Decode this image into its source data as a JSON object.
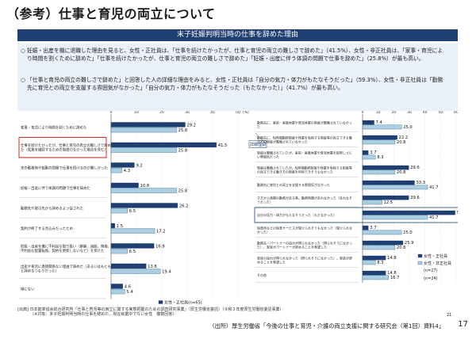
{
  "page": {
    "title": "（参考）仕事と育児の両立について",
    "section_header": "末子妊娠判明当時の仕事を辞めた理由",
    "bullets": [
      "妊娠・出産を機に退職した理由を見ると、女性・正社員は、「仕事を続けたかったが、仕事と育児の両立の難しさで辞めた」（41.5%）、女性・非正社員は、「家事・育児により時間を割くために辞めた」「仕事を続けたかったが、仕事と育児の両立の難しさで辞めた」「妊娠・出産に伴う体調の問題で仕事を辞めた」（25.8%）が最も高い。",
      "「仕事と育児の両立の難しさで辞めた」と回答した人の詳細な理由をみると、女性・正社員は「自分の気力・体力がもたなそうだった」（59.3%）、女性・非正社員は「勤務先に育児との両立を支援する雰囲気がなかった」「自分の気力・体力がもたなそうだった（もたなかった）」（41.7%）が最も高い。"
    ],
    "bullet_mark": "○",
    "source_note": "[出典] 日本能率協会総合研究所「仕事と育児等の両立に関する実態把握のための調査研究事業」（厚生労働省委託）（令和２年度厚生労働省委託事業）",
    "source_note2": "（※対象：末子妊娠判明当時の仕事を辞めた、現在就業中でない女性　複数回答）",
    "slide_page": "21",
    "footer": "（出所）厚生労働省「今後の仕事と育児・介護の両立支援に関する研究会（第1回）資料4」",
    "page_number": "17"
  },
  "chart_data": [
    {
      "type": "bar",
      "orientation": "horizontal",
      "xlim": [
        0,
        50
      ],
      "xticks": [
        "0",
        "10",
        "20",
        "30",
        "40",
        "50"
      ],
      "xlabel": "(%)",
      "categories": [
        "家事・育児により時間を割くために辞めた",
        "仕事を続けたかったが、仕事と育児の両立の難しさで辞めた（就業を継続するための制度がなかった場合を含む）",
        "夫の勤務地や転勤の問題で仕事を続けるのが難しかった",
        "妊娠・出産に伴う体調の問題で仕事を辞めた",
        "勤務先や取引先から辞めるよう促された",
        "契約が終了する見込みだったため",
        "妊娠・出産を機に不利益な取り扱い（解雇、減給、降格、不利益な配置転換、契約を更新しないなど）を受けた",
        "出産や育児に直接関係ない理由で辞めた（あるいはもともと辞めるつもりだった）",
        "特にない"
      ],
      "series": [
        {
          "name": "女性・正社員(n=65)",
          "color": "#1f3f72",
          "values": [
            29.2,
            41.5,
            9.2,
            10.8,
            26.2,
            1.5,
            16.9,
            13.8,
            4.6
          ]
        },
        {
          "name": "女性・非正社員(n=93)",
          "color": "#a9cfe3",
          "values": [
            25.8,
            25.8,
            4.3,
            25.8,
            6.5,
            17.2,
            6.5,
            19.4,
            5.4
          ]
        }
      ],
      "annotation": "詳細理由"
    },
    {
      "type": "bar",
      "orientation": "horizontal",
      "xlim": [
        0,
        60
      ],
      "xticks": [
        "0",
        "10",
        "20",
        "30",
        "40",
        "50",
        "60"
      ],
      "xlabel": "(%)",
      "categories": [
        "勤務先に、産前・産後休業や育児休業の制度が整備されていなかった",
        "勤務先に、短時間勤務制度や残業を免除する制度等の両立できる働き方の制度が整備されていなかった",
        "制度は整備されていたが、産前・産後休業や育児休業を取得しづらい雰囲気だった",
        "制度は整備されていたが、短時間勤務制度や残業を免除する制度等の両立できる働き方の制度を利用できそうもなかった",
        "勤務先に育児との両立を支援する雰囲気がなかった",
        "夕方から夜間の勤務がある等、勤務時間があわなかった（あわなそうだった）",
        "自分の気力・体力がもたなそうだった（もたなかった）",
        "保育所などの保育サービスが受けられそうもなかった（受けられなかった）",
        "勤務先・パートナーの協力が得られなかった（得られそうになかった）、家族がパートナーが辞めることを希望した",
        "家族の協力が得られなかった（得られそうになかった）、家族が辞めることを希望した",
        "その他"
      ],
      "series": [
        {
          "name": "女性・正社員",
          "n": "(n=27)",
          "color": "#1f3f72",
          "values": [
            7.4,
            22.2,
            3.7,
            29.6,
            33.3,
            29.6,
            59.3,
            3.7,
            25.9,
            14.8,
            14.8
          ]
        },
        {
          "name": "女性・非正社員",
          "n": "(n=24)",
          "color": "#a9cfe3",
          "values": [
            25.0,
            20.8,
            8.3,
            20.8,
            41.7,
            12.5,
            41.7,
            25.0,
            20.8,
            8.3,
            16.7
          ]
        }
      ]
    }
  ]
}
